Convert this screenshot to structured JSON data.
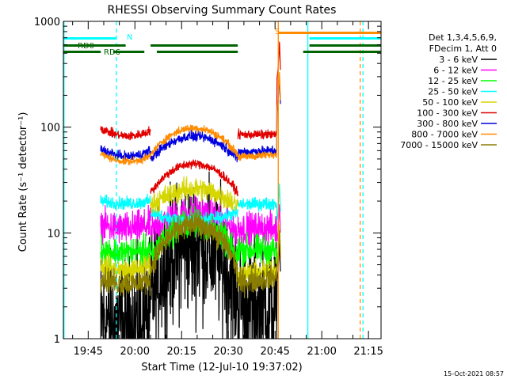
{
  "chart_data": {
    "type": "line",
    "title": "RHESSI Observing Summary Count Rates",
    "xlabel": "Start Time (12-Jul-10 19:37:02)",
    "ylabel": "Count Rate (s⁻¹ detector⁻¹)",
    "y_scale": "log",
    "ylim": [
      1,
      1000
    ],
    "xlim_minutes": [
      0,
      102
    ],
    "x_ticks": [
      "19:45",
      "20:00",
      "20:15",
      "20:30",
      "20:45",
      "21:00",
      "21:15"
    ],
    "y_ticks": [
      "1",
      "10",
      "100",
      "1000"
    ],
    "legend_header": [
      "Det 1,3,4,5,6,9,",
      "FDecim 1, Att 0"
    ],
    "legend_position": "right",
    "timestamp": "15-Oct-2021 08:57",
    "series": [
      {
        "name": "3 - 6 keV",
        "color": "#000000"
      },
      {
        "name": "6 - 12 keV",
        "color": "#ff00ff"
      },
      {
        "name": "12 - 25 keV",
        "color": "#00ff00"
      },
      {
        "name": "25 - 50 keV",
        "color": "#00ffff"
      },
      {
        "name": "50 - 100 keV",
        "color": "#d6d600"
      },
      {
        "name": "100 - 300 keV",
        "color": "#e00000"
      },
      {
        "name": "300 - 800 keV",
        "color": "#0000e0"
      },
      {
        "name": "800 - 7000 keV",
        "color": "#ff8c00"
      },
      {
        "name": "7000 - 15000 keV",
        "color": "#8b7d00"
      }
    ],
    "flags": [
      {
        "label": "RD0",
        "color": "#006400",
        "segments": [
          [
            0,
            20
          ],
          [
            28,
            56
          ],
          [
            79,
            102
          ]
        ]
      },
      {
        "label": "RD6",
        "color": "#006400",
        "segments": [
          [
            0,
            12
          ],
          [
            16,
            26
          ],
          [
            30,
            56
          ],
          [
            77,
            102
          ]
        ]
      },
      {
        "label": "N",
        "color": "#00ffff",
        "segments": [
          [
            0,
            17
          ],
          [
            79,
            102
          ]
        ]
      },
      {
        "label": "S",
        "color": "#ff8c00",
        "segments": [
          [
            69,
            102
          ]
        ]
      }
    ],
    "vlines": [
      {
        "t": 0.2,
        "color": "#00ffff",
        "style": "solid"
      },
      {
        "t": 17.0,
        "color": "#00ffff",
        "style": "dashed"
      },
      {
        "t": 69.0,
        "color": "#ff8c00",
        "style": "solid"
      },
      {
        "t": 78.5,
        "color": "#00ffff",
        "style": "solid"
      },
      {
        "t": 95.3,
        "color": "#ff8c00",
        "style": "dashed"
      },
      {
        "t": 96.2,
        "color": "#00ffff",
        "style": "dashed"
      }
    ]
  }
}
